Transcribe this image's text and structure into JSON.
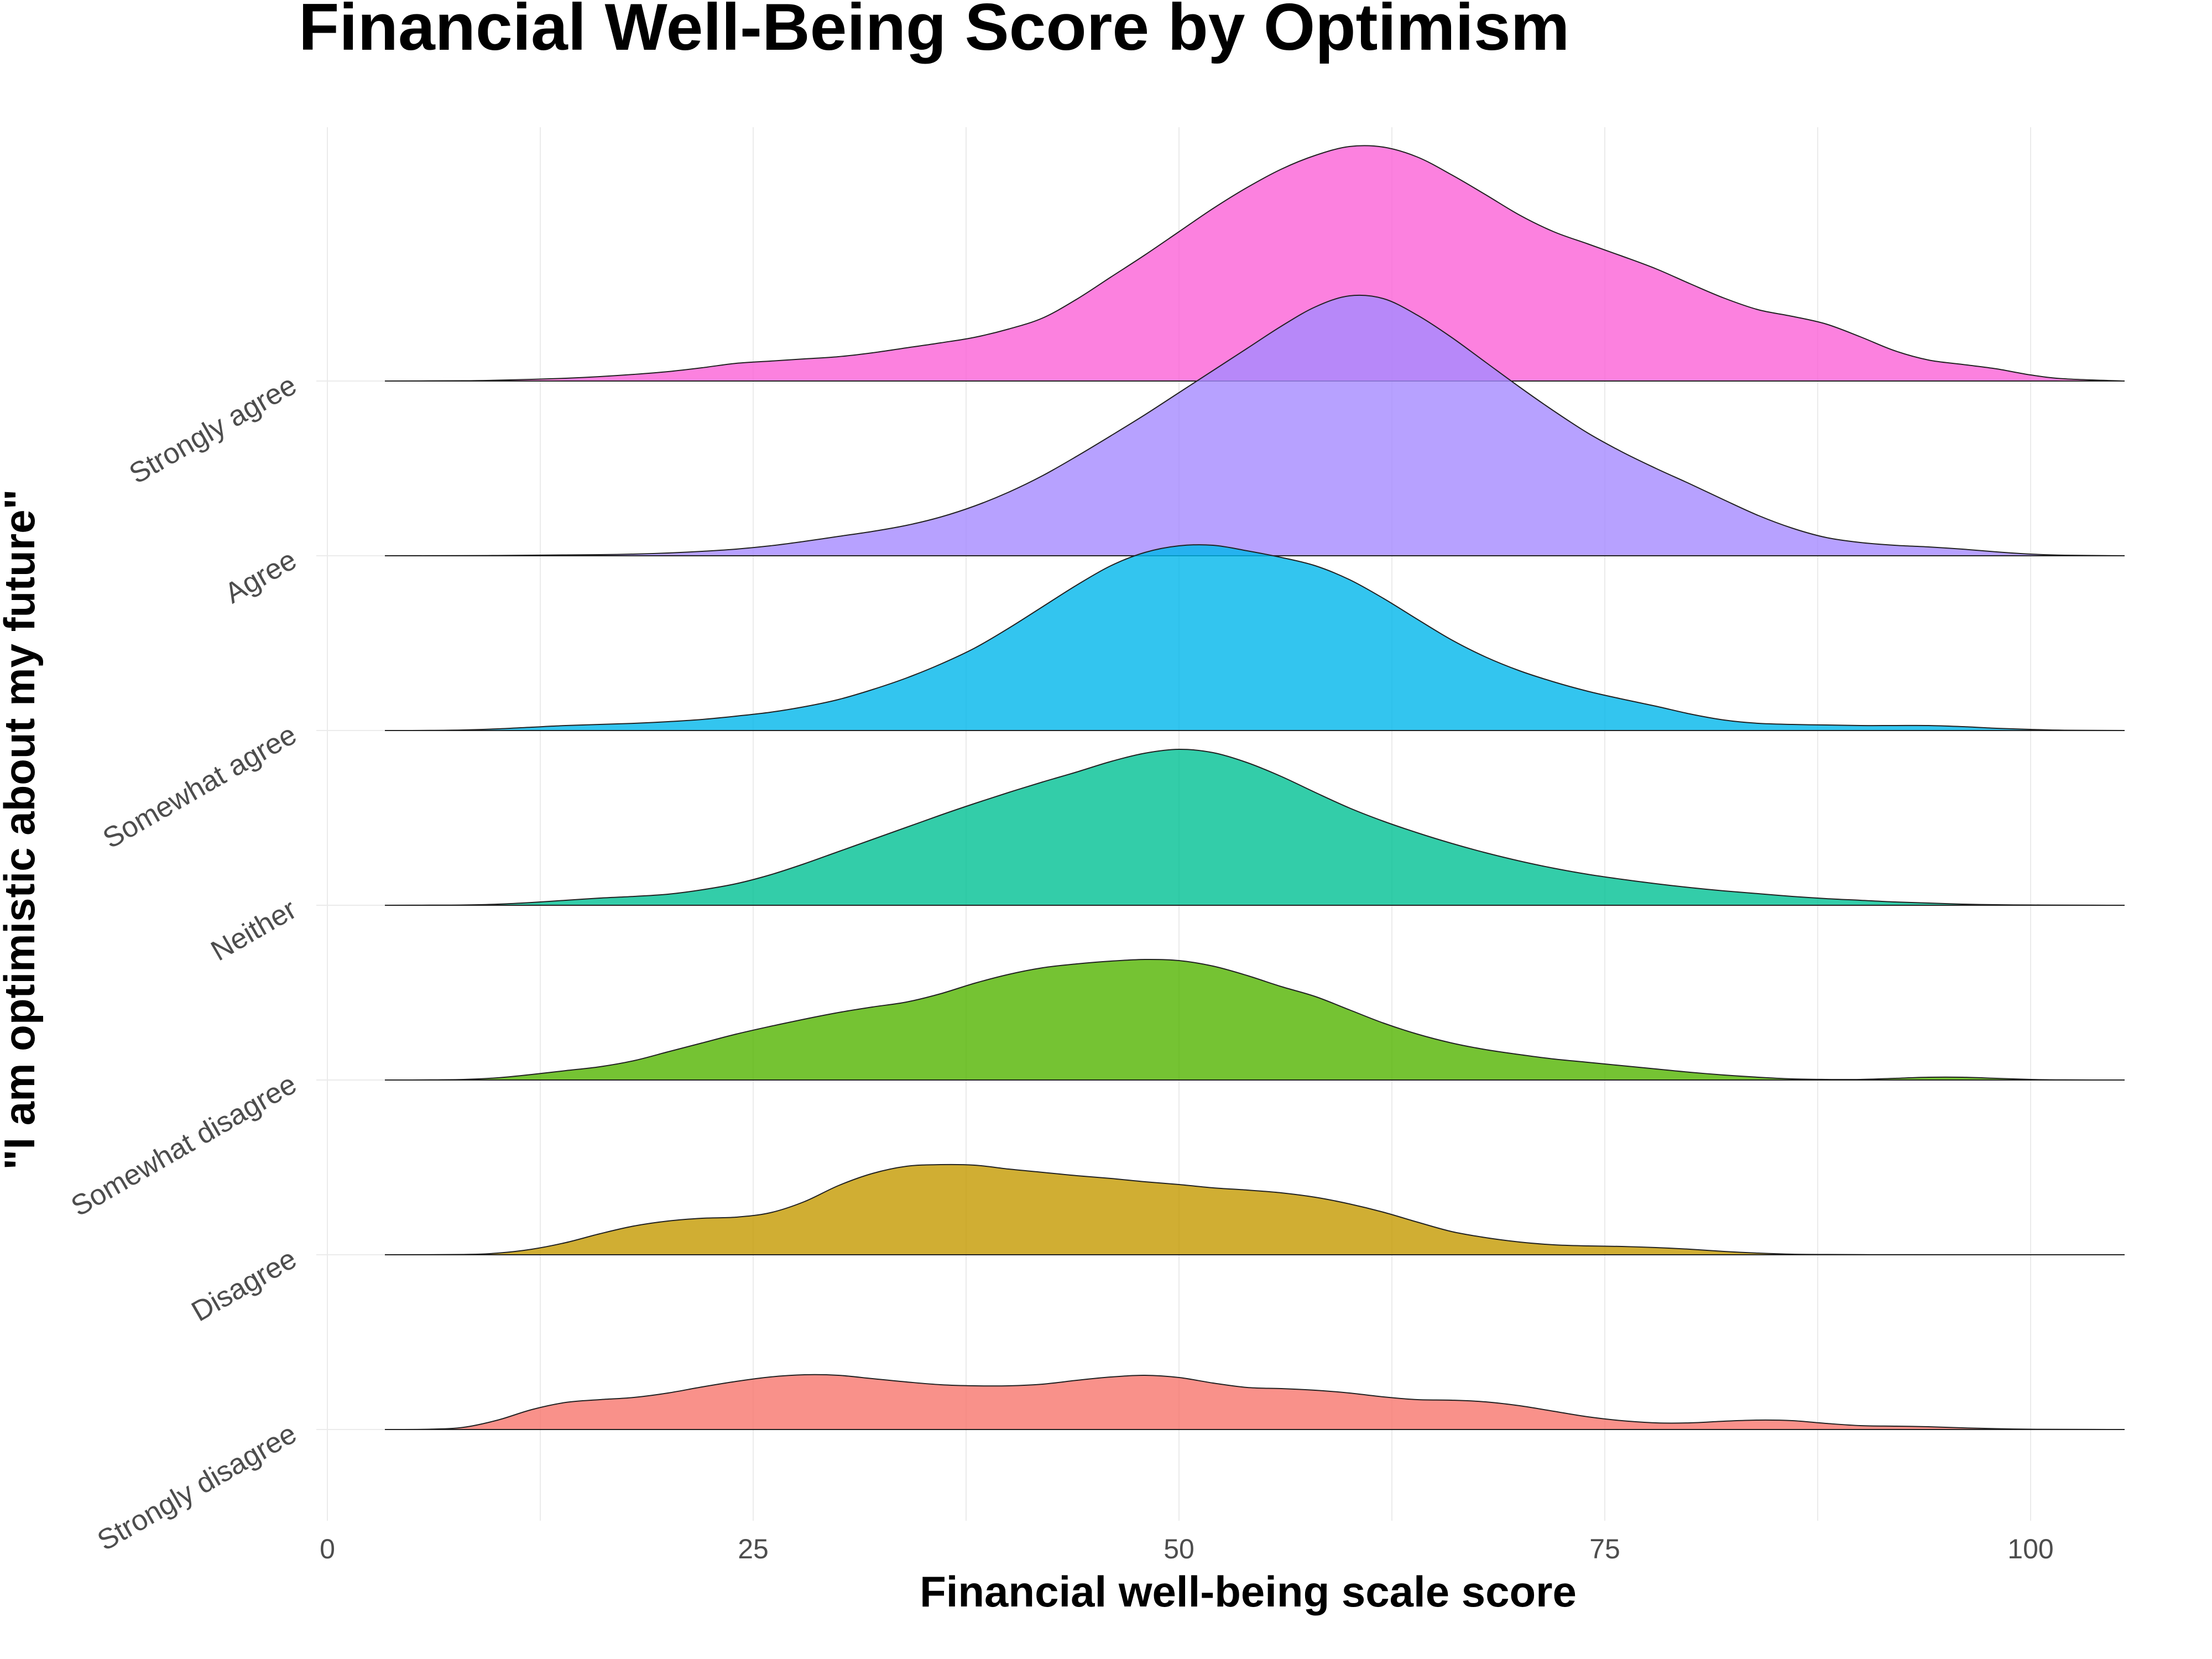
{
  "chart_data": {
    "type": "area",
    "subtype": "ridgeline",
    "title": "Financial Well-Being Score by Optimism",
    "xlabel": "Financial well-being scale score",
    "ylabel": "\"I am optimistic about my future\"",
    "xlim": [
      -3,
      106
    ],
    "x_ticks": [
      0,
      25,
      50,
      75,
      100
    ],
    "x_tick_labels": [
      "0",
      "25",
      "50",
      "75",
      "100"
    ],
    "categories": [
      "Strongly disagree",
      "Disagree",
      "Somewhat disagree",
      "Neither",
      "Somewhat agree",
      "Agree",
      "Strongly agree"
    ],
    "grid": true,
    "legend": "none",
    "series": [
      {
        "category": "Strongly disagree",
        "color": "#F8766D",
        "x": [
          3.5,
          6,
          8,
          10,
          12,
          14,
          16,
          18,
          20,
          22,
          24,
          26,
          28,
          30,
          32,
          34,
          36,
          38,
          40,
          42,
          44,
          46,
          48,
          50,
          52,
          54,
          56,
          58,
          60,
          62,
          64,
          66,
          68,
          70,
          72,
          74,
          76,
          78,
          80,
          82,
          84,
          86,
          88,
          90,
          92,
          94,
          96,
          98,
          100,
          102,
          105.5
        ],
        "density": [
          0,
          0.5,
          4,
          17,
          36,
          49,
          54,
          58,
          66,
          77,
          87,
          95,
          99,
          98,
          92,
          86,
          81,
          79,
          79,
          82,
          89,
          95,
          98,
          94,
          84,
          76,
          74,
          71,
          66,
          59,
          54,
          53,
          50,
          43,
          33,
          23,
          16,
          12,
          12,
          15,
          17,
          16,
          11,
          7,
          6,
          5,
          3,
          1.5,
          0.5,
          0.2,
          0
        ]
      },
      {
        "category": "Disagree",
        "color": "#C49A00",
        "x": [
          3.5,
          8,
          10,
          12,
          14,
          16,
          18,
          20,
          22,
          24,
          26,
          28,
          30,
          32,
          34,
          36,
          38,
          40,
          42,
          44,
          46,
          48,
          50,
          52,
          54,
          56,
          58,
          60,
          62,
          64,
          66,
          68,
          70,
          72,
          74,
          76,
          78,
          80,
          82,
          84,
          86,
          88,
          90,
          92,
          96,
          105.5
        ],
        "density": [
          0,
          0.5,
          3,
          10,
          22,
          38,
          52,
          61,
          66,
          68,
          76,
          96,
          125,
          147,
          160,
          163,
          162,
          155,
          149,
          143,
          138,
          132,
          127,
          121,
          117,
          112,
          104,
          92,
          77,
          59,
          42,
          31,
          23,
          18,
          16,
          15,
          13,
          10,
          6,
          3,
          1,
          0.5,
          0.2,
          0.1,
          0,
          0
        ]
      },
      {
        "category": "Somewhat disagree",
        "color": "#53B400",
        "x": [
          3.5,
          6,
          8,
          10,
          12,
          14,
          16,
          18,
          20,
          22,
          24,
          26,
          28,
          30,
          32,
          34,
          36,
          38,
          40,
          42,
          44,
          46,
          48,
          50,
          52,
          54,
          56,
          58,
          60,
          62,
          64,
          66,
          68,
          70,
          72,
          74,
          76,
          78,
          80,
          82,
          84,
          86,
          88,
          90,
          92,
          94,
          96,
          98,
          100,
          102,
          105.5
        ],
        "density": [
          0,
          0.2,
          1,
          4,
          10,
          17,
          24,
          35,
          51,
          67,
          83,
          97,
          110,
          122,
          132,
          141,
          156,
          175,
          191,
          203,
          210,
          215,
          218,
          216,
          206,
          189,
          169,
          151,
          127,
          103,
          83,
          67,
          55,
          46,
          38,
          32,
          26,
          20,
          14,
          9,
          5,
          2,
          1,
          1,
          3,
          5,
          5,
          3,
          1,
          0.2,
          0
        ]
      },
      {
        "category": "Neither",
        "color": "#00C094",
        "x": [
          3.5,
          6,
          8,
          10,
          12,
          14,
          16,
          18,
          20,
          22,
          24,
          26,
          28,
          30,
          32,
          34,
          36,
          38,
          40,
          42,
          44,
          46,
          48,
          50,
          52,
          54,
          56,
          58,
          60,
          62,
          64,
          66,
          68,
          70,
          72,
          74,
          76,
          78,
          80,
          82,
          84,
          86,
          88,
          90,
          92,
          94,
          96,
          98,
          100,
          102,
          105.5
        ],
        "density": [
          0,
          0.2,
          0.5,
          2,
          5,
          9,
          13,
          16,
          20,
          28,
          39,
          55,
          75,
          97,
          119,
          141,
          163,
          184,
          204,
          223,
          241,
          260,
          275,
          282,
          276,
          258,
          233,
          204,
          176,
          152,
          131,
          112,
          95,
          80,
          67,
          56,
          47,
          39,
          32,
          26,
          21,
          16,
          12,
          9,
          6,
          4,
          2,
          1,
          0.5,
          0.2,
          0
        ]
      },
      {
        "category": "Somewhat agree",
        "color": "#00B6EB",
        "x": [
          3.5,
          6,
          8,
          10,
          12,
          14,
          16,
          18,
          20,
          22,
          24,
          26,
          28,
          30,
          32,
          34,
          36,
          38,
          40,
          42,
          44,
          46,
          48,
          50,
          52,
          54,
          56,
          58,
          60,
          62,
          64,
          66,
          68,
          70,
          72,
          74,
          76,
          78,
          80,
          82,
          84,
          86,
          88,
          90,
          92,
          94,
          96,
          98,
          100,
          102,
          105.5
        ],
        "density": [
          0,
          0.2,
          1,
          3,
          6,
          9,
          11,
          13,
          16,
          20,
          26,
          33,
          43,
          56,
          74,
          95,
          120,
          149,
          185,
          224,
          263,
          298,
          322,
          334,
          335,
          325,
          313,
          298,
          273,
          239,
          201,
          164,
          133,
          108,
          88,
          71,
          57,
          44,
          30,
          19,
          13,
          11,
          10,
          9,
          9,
          9,
          7,
          4,
          2,
          0.5,
          0
        ]
      },
      {
        "category": "Agree",
        "color": "#A58AFF",
        "x": [
          3.5,
          8,
          10,
          12,
          14,
          16,
          18,
          20,
          22,
          24,
          26,
          28,
          30,
          32,
          34,
          36,
          38,
          40,
          42,
          44,
          46,
          48,
          50,
          52,
          54,
          56,
          58,
          60,
          62,
          64,
          66,
          68,
          70,
          72,
          74,
          76,
          78,
          80,
          82,
          84,
          86,
          88,
          90,
          92,
          94,
          96,
          98,
          100,
          102,
          105.5
        ],
        "density": [
          0,
          0.2,
          0.5,
          1,
          1.5,
          2,
          3,
          5,
          8,
          12,
          18,
          26,
          35,
          44,
          55,
          70,
          90,
          115,
          145,
          180,
          217,
          255,
          295,
          335,
          375,
          415,
          450,
          470,
          465,
          435,
          395,
          350,
          305,
          262,
          222,
          188,
          158,
          130,
          101,
          73,
          50,
          33,
          24,
          19,
          16,
          12,
          7,
          3,
          1,
          0
        ]
      },
      {
        "category": "Strongly agree",
        "color": "#FB61D7",
        "x": [
          3.5,
          8,
          10,
          12,
          14,
          16,
          18,
          20,
          22,
          24,
          26,
          28,
          30,
          32,
          34,
          36,
          38,
          40,
          42,
          44,
          46,
          48,
          50,
          52,
          54,
          56,
          58,
          60,
          62,
          64,
          66,
          68,
          70,
          72,
          74,
          76,
          78,
          80,
          82,
          84,
          86,
          88,
          90,
          92,
          94,
          96,
          98,
          100,
          102,
          105.5
        ],
        "density": [
          0,
          0.5,
          1.5,
          3,
          5,
          8,
          12,
          17,
          24,
          32,
          36,
          40,
          44,
          51,
          60,
          69,
          79,
          94,
          114,
          148,
          188,
          228,
          270,
          312,
          350,
          383,
          408,
          424,
          423,
          405,
          373,
          337,
          300,
          270,
          248,
          226,
          203,
          176,
          150,
          129,
          117,
          103,
          80,
          55,
          38,
          30,
          22,
          11,
          4,
          0
        ]
      }
    ]
  }
}
